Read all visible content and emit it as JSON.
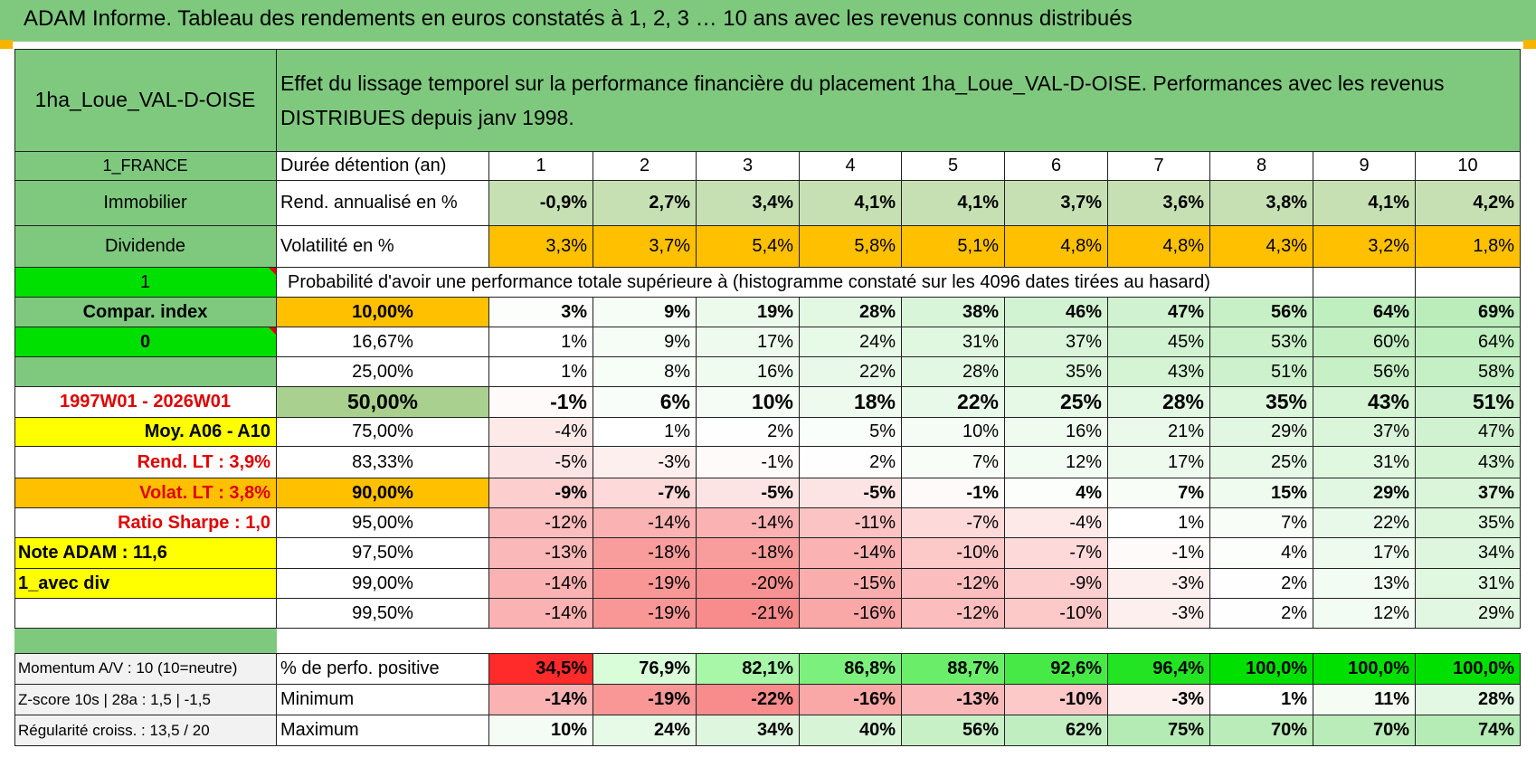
{
  "banner_title": "ADAM Informe. Tableau des rendements en euros constatés à 1, 2, 3 … 10 ans avec les revenus connus distribués",
  "header": {
    "fund_name": "1ha_Loue_VAL-D-OISE",
    "description": "Effet du lissage temporel sur la performance financière du placement 1ha_Loue_VAL-D-OISE. Performances avec les revenus DISTRIBUES depuis janv 1998."
  },
  "left_panel": {
    "country": "1_FRANCE",
    "asset_class": "Immobilier",
    "income_type": "Dividende",
    "flag_1": "1",
    "compar_index": "Compar. index",
    "flag_2": "0",
    "period": "1997W01 - 2026W01",
    "moy_label": "Moy. A06 - A10",
    "rend_lt": "Rend. LT :   3,9%",
    "volat_lt": "Volat. LT :   3,8%",
    "sharpe": "Ratio Sharpe :    1,0",
    "note_adam": "Note ADAM : 11,6",
    "div_label": "1_avec div",
    "momentum": "Momentum A/V : 10 (10=neutre)",
    "zscore": "Z-score 10s | 28a : 1,5 | -1,5",
    "regularite": "Régularité croiss. : 13,5 / 20"
  },
  "table": {
    "duration_label": "Durée détention (an)",
    "years": [
      "1",
      "2",
      "3",
      "4",
      "5",
      "6",
      "7",
      "8",
      "9",
      "10"
    ],
    "rend_label": "Rend. annualisé en %",
    "rend_values": [
      "-0,9%",
      "2,7%",
      "3,4%",
      "4,1%",
      "4,1%",
      "3,7%",
      "3,6%",
      "3,8%",
      "4,1%",
      "4,2%"
    ],
    "vol_label": "Volatilité en %",
    "vol_values": [
      "3,3%",
      "3,7%",
      "5,4%",
      "5,8%",
      "5,1%",
      "4,8%",
      "4,8%",
      "4,3%",
      "3,2%",
      "1,8%"
    ],
    "prob_title": "Probabilité d'avoir une performance totale supérieure à (histogramme constaté sur les 4096 dates tirées au hasard)",
    "percentile_rows": [
      {
        "pct": "10,00%",
        "values": [
          "3%",
          "9%",
          "19%",
          "28%",
          "38%",
          "46%",
          "47%",
          "56%",
          "64%",
          "69%"
        ]
      },
      {
        "pct": "16,67%",
        "values": [
          "1%",
          "9%",
          "17%",
          "24%",
          "31%",
          "37%",
          "45%",
          "53%",
          "60%",
          "64%"
        ]
      },
      {
        "pct": "25,00%",
        "values": [
          "1%",
          "8%",
          "16%",
          "22%",
          "28%",
          "35%",
          "43%",
          "51%",
          "56%",
          "58%"
        ]
      },
      {
        "pct": "50,00%",
        "values": [
          "-1%",
          "6%",
          "10%",
          "18%",
          "22%",
          "25%",
          "28%",
          "35%",
          "43%",
          "51%"
        ]
      },
      {
        "pct": "75,00%",
        "values": [
          "-4%",
          "1%",
          "2%",
          "5%",
          "10%",
          "16%",
          "21%",
          "29%",
          "37%",
          "47%"
        ]
      },
      {
        "pct": "83,33%",
        "values": [
          "-5%",
          "-3%",
          "-1%",
          "2%",
          "7%",
          "12%",
          "17%",
          "25%",
          "31%",
          "43%"
        ]
      },
      {
        "pct": "90,00%",
        "values": [
          "-9%",
          "-7%",
          "-5%",
          "-5%",
          "-1%",
          "4%",
          "7%",
          "15%",
          "29%",
          "37%"
        ]
      },
      {
        "pct": "95,00%",
        "values": [
          "-12%",
          "-14%",
          "-14%",
          "-11%",
          "-7%",
          "-4%",
          "1%",
          "7%",
          "22%",
          "35%"
        ]
      },
      {
        "pct": "97,50%",
        "values": [
          "-13%",
          "-18%",
          "-18%",
          "-14%",
          "-10%",
          "-7%",
          "-1%",
          "4%",
          "17%",
          "34%"
        ]
      },
      {
        "pct": "99,00%",
        "values": [
          "-14%",
          "-19%",
          "-20%",
          "-15%",
          "-12%",
          "-9%",
          "-3%",
          "2%",
          "13%",
          "31%"
        ]
      },
      {
        "pct": "99,50%",
        "values": [
          "-14%",
          "-19%",
          "-21%",
          "-16%",
          "-12%",
          "-10%",
          "-3%",
          "2%",
          "12%",
          "29%"
        ]
      }
    ],
    "positive_label": "% de perfo. positive",
    "positive_values": [
      "34,5%",
      "76,9%",
      "82,1%",
      "86,8%",
      "88,7%",
      "92,6%",
      "96,4%",
      "100,0%",
      "100,0%",
      "100,0%"
    ],
    "min_label": "Minimum",
    "min_values": [
      "-14%",
      "-19%",
      "-22%",
      "-16%",
      "-13%",
      "-10%",
      "-3%",
      "1%",
      "11%",
      "28%"
    ],
    "max_label": "Maximum",
    "max_values": [
      "10%",
      "24%",
      "34%",
      "40%",
      "56%",
      "62%",
      "75%",
      "70%",
      "70%",
      "74%"
    ]
  },
  "colors": {
    "header_green": "#7fc97f",
    "orange": "#ffc000",
    "yellow": "#ffff00",
    "bright_green": "#00e000",
    "red_text": "#e00000",
    "rend_green": "#c6e0b4"
  }
}
